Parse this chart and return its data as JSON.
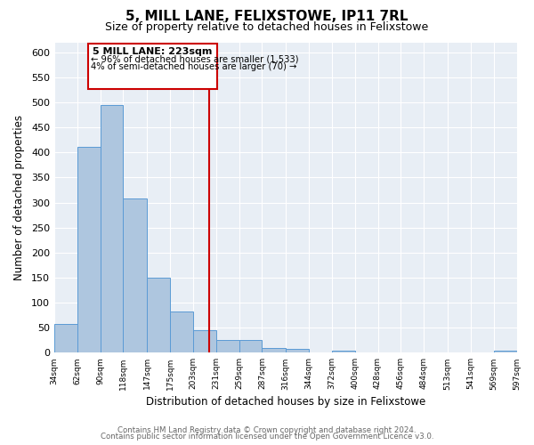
{
  "title": "5, MILL LANE, FELIXSTOWE, IP11 7RL",
  "subtitle": "Size of property relative to detached houses in Felixstowe",
  "xlabel": "Distribution of detached houses by size in Felixstowe",
  "ylabel": "Number of detached properties",
  "bar_edges": [
    34,
    62,
    90,
    118,
    147,
    175,
    203,
    231,
    259,
    287,
    316,
    344,
    372,
    400,
    428,
    456,
    484,
    513,
    541,
    569,
    597
  ],
  "bar_heights": [
    57,
    411,
    494,
    308,
    150,
    82,
    45,
    25,
    25,
    10,
    8,
    0,
    5,
    0,
    0,
    0,
    0,
    0,
    0,
    5
  ],
  "bar_color": "#aec6df",
  "bar_edge_color": "#5b9bd5",
  "vline_x": 223,
  "vline_color": "#cc0000",
  "annotation_title": "5 MILL LANE: 223sqm",
  "annotation_line1": "← 96% of detached houses are smaller (1,533)",
  "annotation_line2": "4% of semi-detached houses are larger (70) →",
  "ylim": [
    0,
    620
  ],
  "yticks": [
    0,
    50,
    100,
    150,
    200,
    250,
    300,
    350,
    400,
    450,
    500,
    550,
    600
  ],
  "footer_line1": "Contains HM Land Registry data © Crown copyright and database right 2024.",
  "footer_line2": "Contains public sector information licensed under the Open Government Licence v3.0.",
  "plot_bg_color": "#e8eef5",
  "fig_bg_color": "#ffffff",
  "grid_color": "#ffffff",
  "tick_labels": [
    "34sqm",
    "62sqm",
    "90sqm",
    "118sqm",
    "147sqm",
    "175sqm",
    "203sqm",
    "231sqm",
    "259sqm",
    "287sqm",
    "316sqm",
    "344sqm",
    "372sqm",
    "400sqm",
    "428sqm",
    "456sqm",
    "484sqm",
    "513sqm",
    "541sqm",
    "569sqm",
    "597sqm"
  ]
}
